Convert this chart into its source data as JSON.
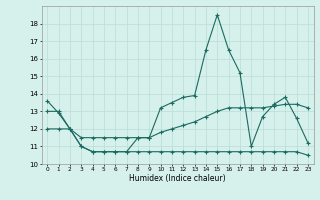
{
  "title": "",
  "xlabel": "Humidex (Indice chaleur)",
  "background_color": "#d6f0ec",
  "grid_color": "#b8ddd8",
  "line_color": "#1a6b60",
  "x_data": [
    0,
    1,
    2,
    3,
    4,
    5,
    6,
    7,
    8,
    9,
    10,
    11,
    12,
    13,
    14,
    15,
    16,
    17,
    18,
    19,
    20,
    21,
    22,
    23
  ],
  "curve1": [
    13.6,
    12.9,
    12.0,
    11.0,
    10.7,
    10.7,
    10.7,
    10.7,
    11.5,
    11.5,
    13.2,
    13.5,
    13.8,
    13.9,
    16.5,
    18.5,
    16.5,
    15.2,
    11.0,
    12.7,
    13.4,
    13.8,
    12.6,
    11.2
  ],
  "curve2": [
    13.0,
    13.0,
    12.0,
    11.0,
    10.7,
    10.7,
    10.7,
    10.7,
    10.7,
    10.7,
    10.7,
    10.7,
    10.7,
    10.7,
    10.7,
    10.7,
    10.7,
    10.7,
    10.7,
    10.7,
    10.7,
    10.7,
    10.7,
    10.5
  ],
  "curve3": [
    12.0,
    12.0,
    12.0,
    11.5,
    11.5,
    11.5,
    11.5,
    11.5,
    11.5,
    11.5,
    11.8,
    12.0,
    12.2,
    12.4,
    12.7,
    13.0,
    13.2,
    13.2,
    13.2,
    13.2,
    13.3,
    13.4,
    13.4,
    13.2
  ],
  "ylim": [
    10,
    19
  ],
  "xlim": [
    -0.5,
    23.5
  ],
  "yticks": [
    10,
    11,
    12,
    13,
    14,
    15,
    16,
    17,
    18
  ],
  "xtick_labels": [
    "0",
    "1",
    "2",
    "3",
    "4",
    "5",
    "6",
    "7",
    "8",
    "9",
    "10",
    "11",
    "12",
    "13",
    "14",
    "15",
    "16",
    "17",
    "18",
    "19",
    "20",
    "21",
    "22",
    "23"
  ]
}
